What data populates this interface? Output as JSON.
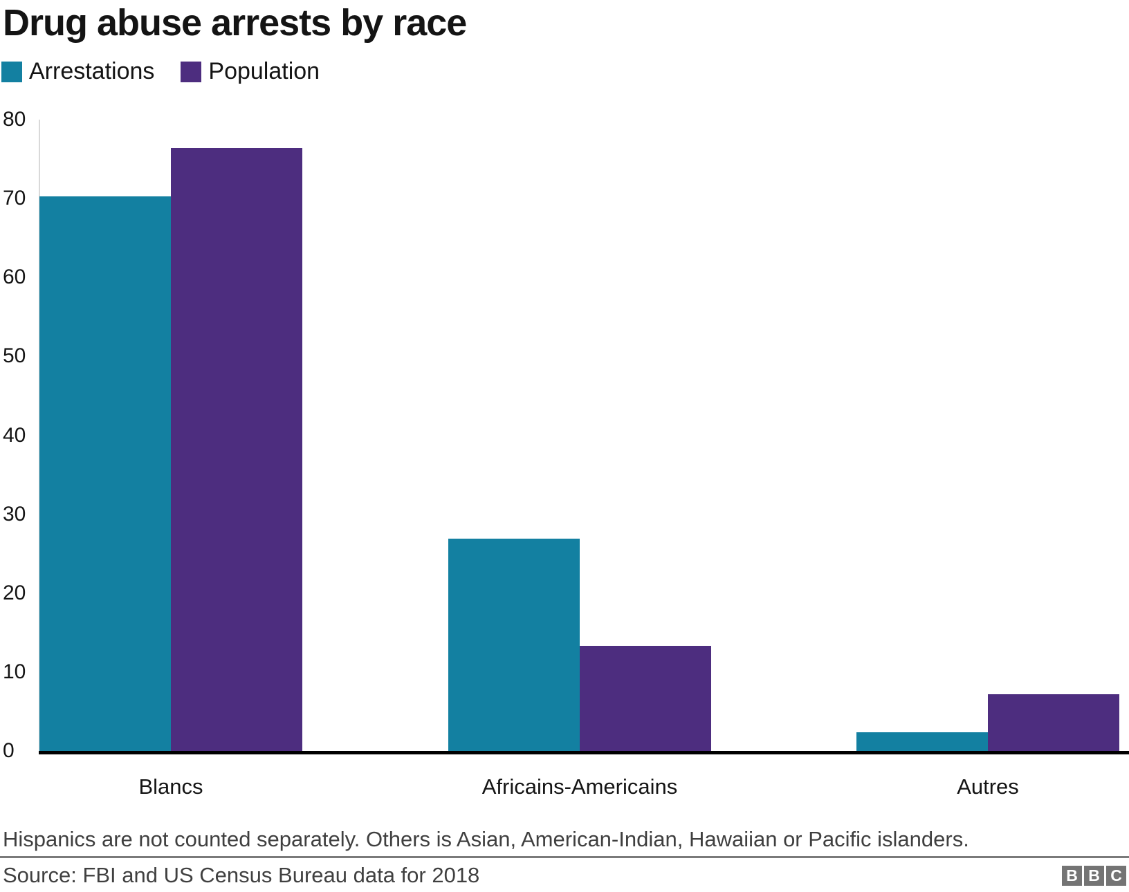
{
  "title": "Drug abuse arrests by race",
  "legend": {
    "items": [
      {
        "label": "Arrestations",
        "color": "#1380a1"
      },
      {
        "label": "Population",
        "color": "#4d2d7f"
      }
    ]
  },
  "chart_data": {
    "type": "bar",
    "title": "Drug abuse arrests by race",
    "categories": [
      "Blancs",
      "Africains-Americains",
      "Autres"
    ],
    "series": [
      {
        "name": "Arrestations",
        "color": "#1380a1",
        "values": [
          70.3,
          26.9,
          2.4
        ]
      },
      {
        "name": "Population",
        "color": "#4d2d7f",
        "values": [
          76.4,
          13.3,
          7.2
        ]
      }
    ],
    "xlabel": "",
    "ylabel": "",
    "ylim": [
      0,
      80
    ],
    "yticks": [
      0,
      10,
      20,
      30,
      40,
      50,
      60,
      70,
      80
    ],
    "grid": false,
    "legend_position": "top-left",
    "units": "percent"
  },
  "footnote": "Hispanics are not counted separately. Others is Asian, American-Indian, Hawaiian or Pacific islanders.",
  "source": "Source: FBI and US Census Bureau data for 2018",
  "logo": {
    "letters": [
      "B",
      "B",
      "C"
    ]
  }
}
